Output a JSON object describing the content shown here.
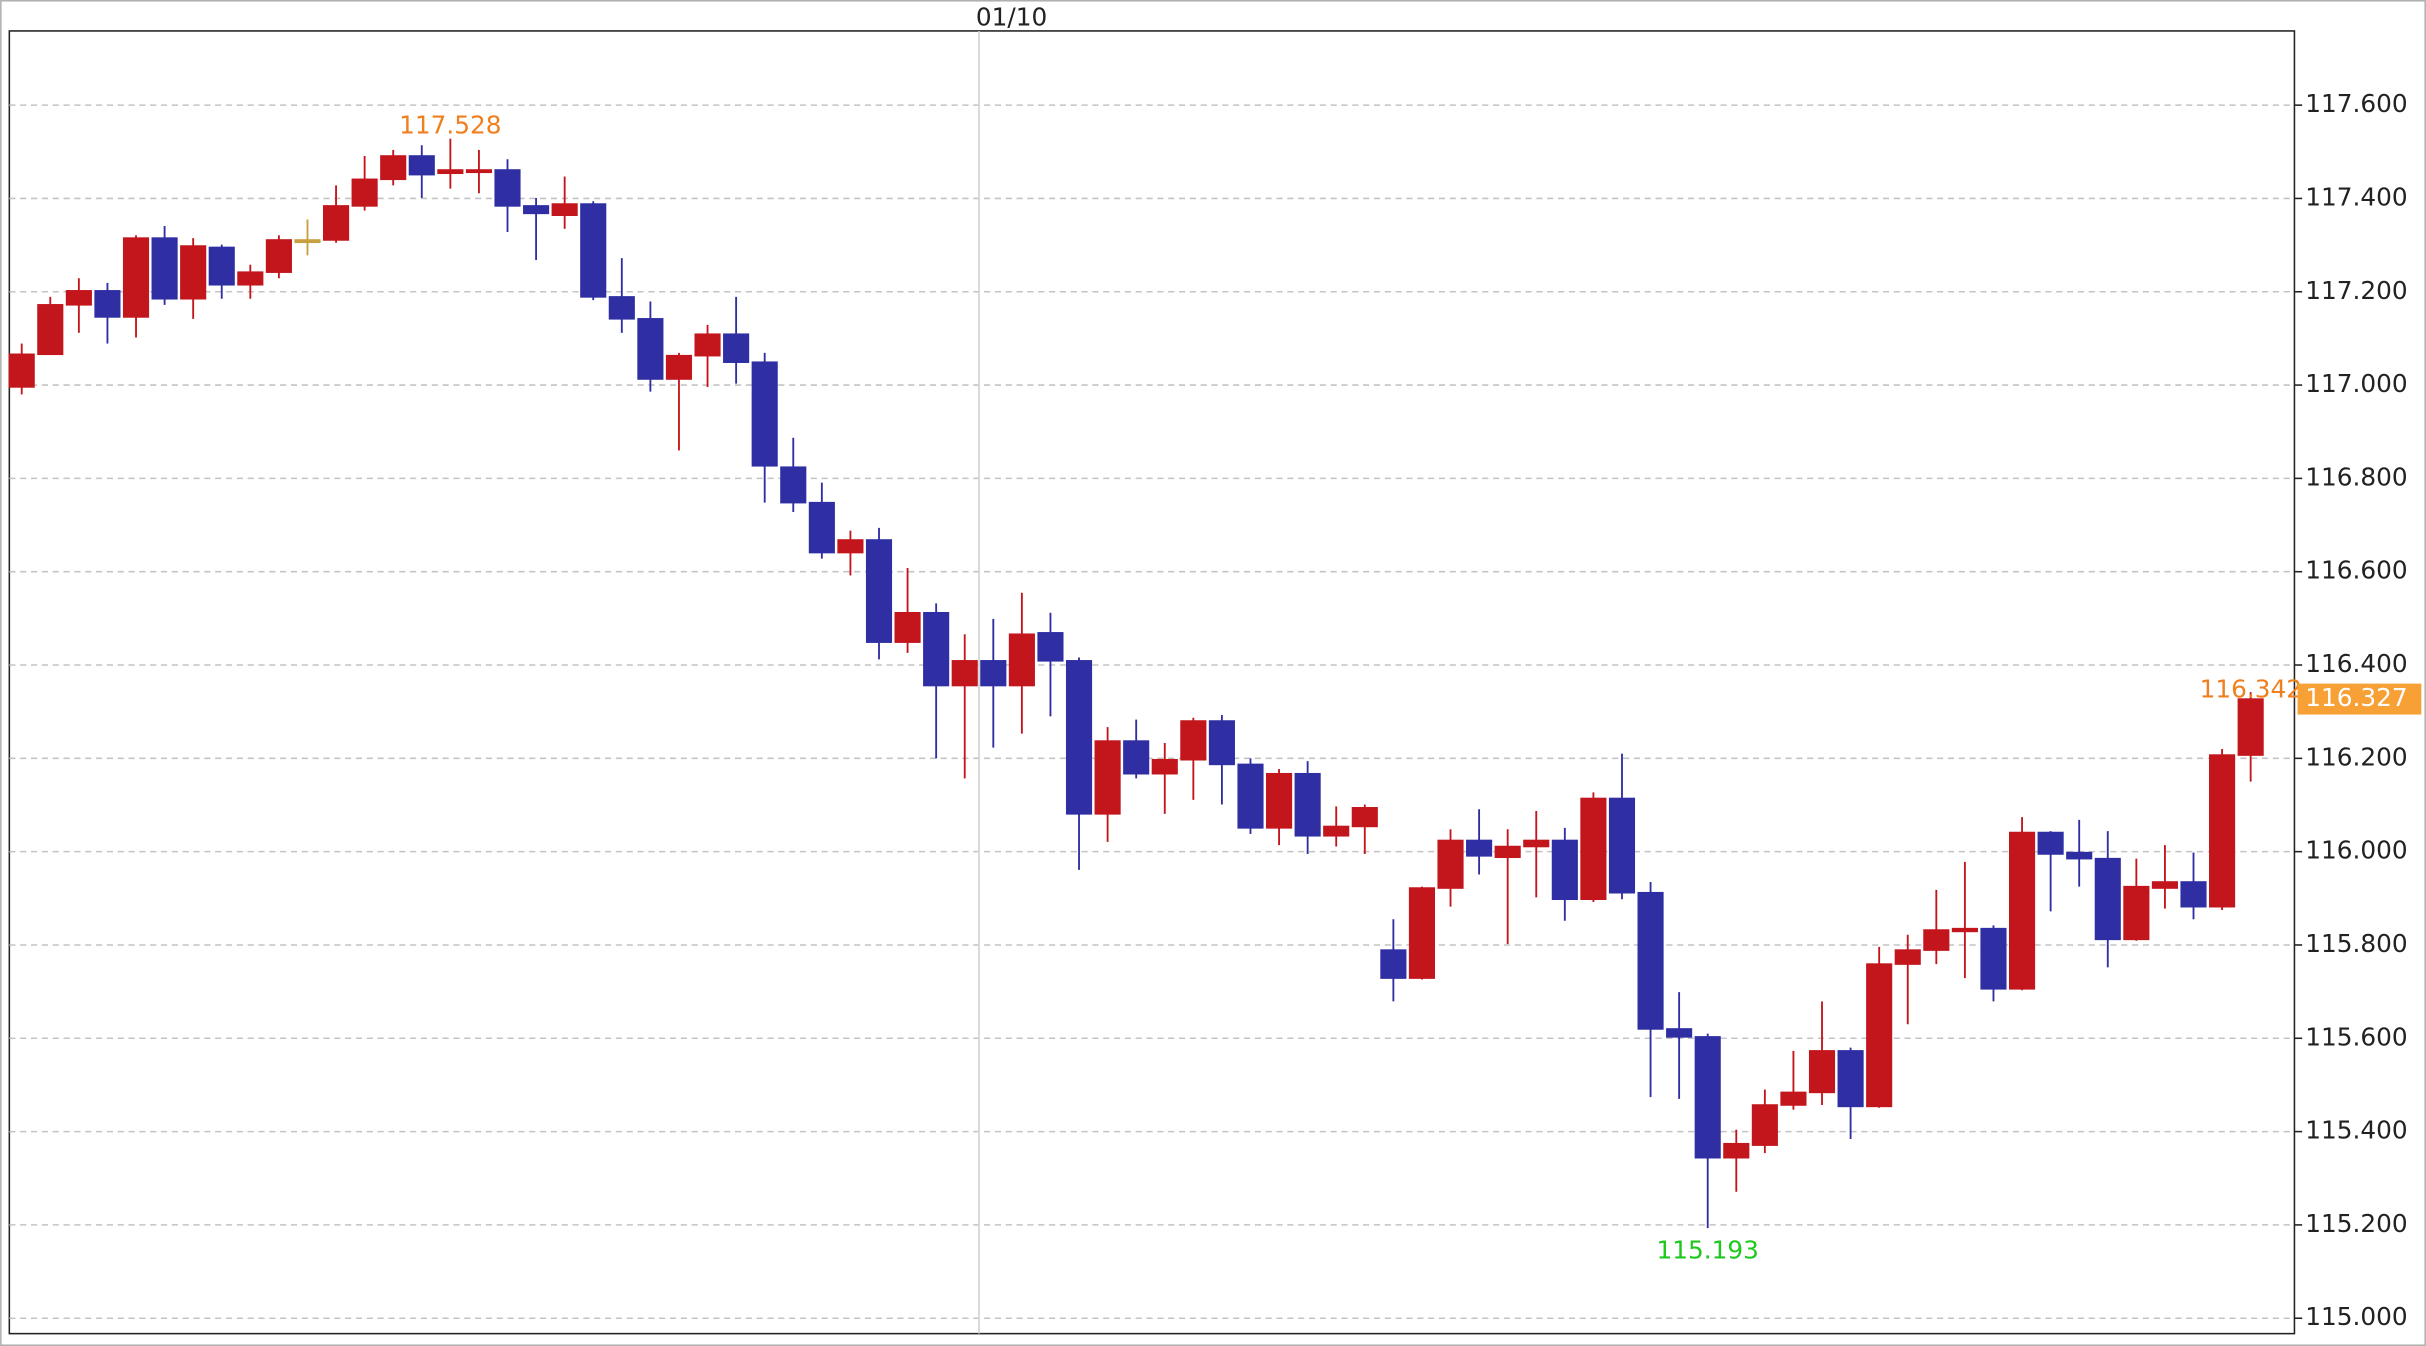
{
  "chart_data": {
    "type": "candlestick",
    "categories": [
      null,
      null,
      null,
      null,
      null,
      null,
      null,
      null,
      null,
      null,
      null,
      null,
      null,
      null,
      null,
      null,
      null,
      null,
      null,
      null,
      null,
      null,
      null,
      null,
      null,
      null,
      null,
      null,
      null,
      null,
      null,
      null,
      null,
      null,
      "01/10",
      null,
      null,
      null,
      null,
      null,
      null,
      null,
      null,
      null,
      null,
      null,
      null,
      null,
      null,
      null,
      null,
      null,
      null,
      null,
      null,
      null,
      null,
      null,
      null,
      null,
      null,
      null,
      null,
      null,
      null,
      null,
      null,
      null,
      null,
      null,
      null,
      null,
      null,
      null,
      null,
      null,
      null,
      null,
      null
    ],
    "open": [
      116.996,
      117.066,
      117.172,
      117.202,
      117.146,
      117.315,
      117.185,
      117.295,
      117.215,
      117.242,
      117.311,
      117.311,
      117.384,
      117.441,
      117.491,
      117.454,
      117.457,
      117.461,
      117.384,
      117.364,
      117.388,
      117.189,
      117.142,
      117.013,
      117.063,
      117.109,
      117.049,
      116.824,
      116.748,
      116.641,
      116.668,
      116.449,
      116.512,
      116.356,
      116.409,
      116.356,
      116.469,
      116.409,
      116.081,
      116.237,
      116.167,
      116.197,
      116.28,
      116.187,
      116.051,
      116.167,
      116.034,
      116.054,
      115.789,
      115.729,
      115.922,
      116.024,
      115.988,
      116.011,
      116.024,
      115.898,
      116.114,
      115.912,
      115.62,
      115.603,
      115.344,
      115.371,
      115.457,
      115.484,
      115.573,
      115.454,
      115.759,
      115.789,
      115.829,
      115.835,
      115.706,
      116.041,
      115.998,
      115.985,
      115.812,
      115.922,
      115.935,
      115.882,
      116.207
    ],
    "high": [
      117.089,
      117.189,
      117.229,
      117.219,
      117.321,
      117.341,
      117.315,
      117.301,
      117.258,
      117.321,
      117.355,
      117.428,
      117.491,
      117.504,
      117.514,
      117.528,
      117.504,
      117.484,
      117.401,
      117.447,
      117.394,
      117.272,
      117.179,
      117.069,
      117.129,
      117.189,
      117.069,
      116.887,
      116.791,
      116.688,
      116.694,
      116.608,
      116.532,
      116.466,
      116.499,
      116.555,
      116.512,
      116.416,
      116.267,
      116.283,
      116.233,
      116.287,
      116.293,
      116.2,
      116.177,
      116.194,
      116.097,
      116.101,
      115.855,
      115.925,
      116.048,
      116.091,
      116.048,
      116.087,
      116.051,
      116.127,
      116.21,
      115.935,
      115.699,
      115.61,
      115.404,
      115.49,
      115.573,
      115.679,
      115.58,
      115.796,
      115.822,
      115.918,
      115.978,
      115.842,
      116.074,
      116.044,
      116.068,
      116.044,
      115.985,
      116.014,
      115.998,
      116.22,
      116.342
    ],
    "low": [
      116.98,
      117.066,
      117.112,
      117.089,
      117.102,
      117.172,
      117.142,
      117.185,
      117.185,
      117.229,
      117.278,
      117.305,
      117.374,
      117.428,
      117.401,
      117.421,
      117.411,
      117.328,
      117.268,
      117.335,
      117.182,
      117.112,
      116.986,
      116.86,
      116.996,
      117.003,
      116.748,
      116.728,
      116.628,
      116.592,
      116.412,
      116.426,
      116.2,
      116.157,
      116.223,
      116.253,
      116.29,
      115.961,
      116.021,
      116.157,
      116.081,
      116.111,
      116.101,
      116.038,
      116.014,
      115.995,
      116.011,
      115.995,
      115.679,
      115.726,
      115.882,
      115.951,
      115.802,
      115.902,
      115.852,
      115.892,
      115.898,
      115.474,
      115.47,
      115.193,
      115.271,
      115.354,
      115.447,
      115.457,
      115.384,
      115.451,
      115.63,
      115.759,
      115.729,
      115.679,
      115.703,
      115.872,
      115.925,
      115.752,
      115.809,
      115.878,
      115.855,
      115.875,
      116.15
    ],
    "close": [
      117.066,
      117.172,
      117.202,
      117.146,
      117.315,
      117.185,
      117.298,
      117.215,
      117.242,
      117.311,
      117.311,
      117.384,
      117.441,
      117.491,
      117.451,
      117.461,
      117.461,
      117.384,
      117.368,
      117.388,
      117.189,
      117.142,
      117.013,
      117.063,
      117.109,
      117.049,
      116.827,
      116.748,
      116.641,
      116.668,
      116.449,
      116.512,
      116.356,
      116.409,
      116.356,
      116.466,
      116.409,
      116.081,
      116.237,
      116.167,
      116.197,
      116.28,
      116.187,
      116.051,
      116.167,
      116.034,
      116.054,
      116.094,
      115.729,
      115.922,
      116.024,
      115.991,
      116.011,
      116.024,
      115.898,
      116.114,
      115.912,
      115.62,
      115.603,
      115.344,
      115.374,
      115.457,
      115.484,
      115.573,
      115.454,
      115.759,
      115.789,
      115.832,
      115.835,
      115.706,
      116.041,
      115.995,
      115.985,
      115.812,
      115.925,
      115.935,
      115.882,
      116.207,
      116.327
    ],
    "ylim": [
      114.967,
      117.759
    ],
    "yticks": [
      {
        "value": 115.0,
        "label": "115.000"
      },
      {
        "value": 115.2,
        "label": "115.200"
      },
      {
        "value": 115.4,
        "label": "115.400"
      },
      {
        "value": 115.6,
        "label": "115.600"
      },
      {
        "value": 115.8,
        "label": "115.800"
      },
      {
        "value": 116.0,
        "label": "116.000"
      },
      {
        "value": 116.2,
        "label": "116.200"
      },
      {
        "value": 116.4,
        "label": "116.400"
      },
      {
        "value": 116.6,
        "label": "116.600"
      },
      {
        "value": 116.8,
        "label": "116.800"
      },
      {
        "value": 117.0,
        "label": "117.000"
      },
      {
        "value": 117.2,
        "label": "117.200"
      },
      {
        "value": 117.4,
        "label": "117.400"
      },
      {
        "value": 117.6,
        "label": "117.600"
      }
    ],
    "grid": true,
    "up_color": "#c3161c",
    "down_color": "#2f2fa3",
    "flat_color": "#c8a040",
    "max_color": "#f07f1e",
    "min_color": "#1ec81e",
    "last_color": "#f7a035"
  }
}
